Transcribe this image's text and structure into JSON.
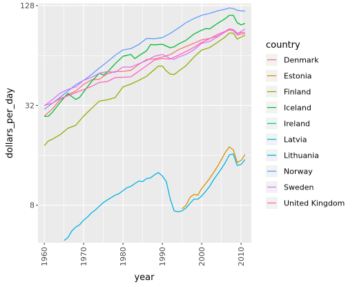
{
  "chart_data": {
    "type": "line",
    "title": "",
    "xlabel": "year",
    "ylabel": "dollars_per_day",
    "y_scale": "log2",
    "xlim": [
      1958.4,
      2012.6
    ],
    "ylim": [
      4.75,
      132
    ],
    "x_ticks": [
      {
        "value": 1960,
        "label": "1960"
      },
      {
        "value": 1970,
        "label": "1970"
      },
      {
        "value": 1980,
        "label": "1980"
      },
      {
        "value": 1990,
        "label": "1990"
      },
      {
        "value": 2000,
        "label": "2000"
      },
      {
        "value": 2010,
        "label": "2010"
      }
    ],
    "y_ticks": [
      {
        "value": 8,
        "label": "8"
      },
      {
        "value": 32,
        "label": "32"
      },
      {
        "value": 128,
        "label": "128"
      }
    ],
    "grid": true,
    "legend_position": "right",
    "legend_title": "country",
    "series": [
      {
        "name": "Denmark",
        "color": "#F8766D",
        "points": [
          [
            1960,
            27.6
          ],
          [
            1962,
            30.4
          ],
          [
            1964,
            34.6
          ],
          [
            1966,
            37.1
          ],
          [
            1968,
            39.1
          ],
          [
            1970,
            42.9
          ],
          [
            1972,
            45.7
          ],
          [
            1974,
            46.1
          ],
          [
            1976,
            49.6
          ],
          [
            1978,
            51.3
          ],
          [
            1980,
            51.3
          ],
          [
            1982,
            52.2
          ],
          [
            1984,
            56.6
          ],
          [
            1986,
            60.6
          ],
          [
            1988,
            61.1
          ],
          [
            1990,
            62.7
          ],
          [
            1992,
            64.8
          ],
          [
            1994,
            69.3
          ],
          [
            1996,
            72.6
          ],
          [
            1998,
            75.9
          ],
          [
            2000,
            79.6
          ],
          [
            2002,
            81.2
          ],
          [
            2004,
            83.8
          ],
          [
            2006,
            89.1
          ],
          [
            2007,
            91.4
          ],
          [
            2008,
            90.7
          ],
          [
            2009,
            85.2
          ],
          [
            2010,
            86.3
          ],
          [
            2011,
            86.6
          ]
        ]
      },
      {
        "name": "Estonia",
        "color": "#D39200",
        "points": [
          [
            1995,
            7.6
          ],
          [
            1996,
            8.0
          ],
          [
            1997,
            8.9
          ],
          [
            1998,
            9.3
          ],
          [
            1999,
            9.2
          ],
          [
            2000,
            10.1
          ],
          [
            2001,
            10.8
          ],
          [
            2002,
            11.6
          ],
          [
            2003,
            12.6
          ],
          [
            2004,
            13.7
          ],
          [
            2005,
            15.1
          ],
          [
            2006,
            16.7
          ],
          [
            2007,
            18.0
          ],
          [
            2008,
            17.3
          ],
          [
            2009,
            14.5
          ],
          [
            2010,
            14.9
          ],
          [
            2011,
            16.2
          ]
        ]
      },
      {
        "name": "Finland",
        "color": "#93AA00",
        "points": [
          [
            1960,
            18.3
          ],
          [
            1961,
            19.5
          ],
          [
            1962,
            20.0
          ],
          [
            1964,
            21.3
          ],
          [
            1966,
            23.3
          ],
          [
            1968,
            24.3
          ],
          [
            1970,
            27.6
          ],
          [
            1972,
            30.7
          ],
          [
            1974,
            34.0
          ],
          [
            1976,
            34.6
          ],
          [
            1978,
            35.7
          ],
          [
            1980,
            41.4
          ],
          [
            1982,
            43.1
          ],
          [
            1984,
            45.3
          ],
          [
            1986,
            48.0
          ],
          [
            1988,
            52.8
          ],
          [
            1989,
            55.3
          ],
          [
            1990,
            55.3
          ],
          [
            1991,
            51.7
          ],
          [
            1992,
            49.5
          ],
          [
            1993,
            49.2
          ],
          [
            1994,
            51.3
          ],
          [
            1996,
            55.6
          ],
          [
            1998,
            62.6
          ],
          [
            2000,
            69.1
          ],
          [
            2002,
            71.5
          ],
          [
            2004,
            76.9
          ],
          [
            2006,
            83.0
          ],
          [
            2007,
            87.4
          ],
          [
            2008,
            87.4
          ],
          [
            2009,
            80.5
          ],
          [
            2010,
            82.7
          ],
          [
            2011,
            84.8
          ]
        ]
      },
      {
        "name": "Iceland",
        "color": "#00BA38",
        "points": [
          [
            1960,
            27.5
          ],
          [
            1961,
            27.5
          ],
          [
            1962,
            29.0
          ],
          [
            1964,
            33.3
          ],
          [
            1966,
            37.9
          ],
          [
            1967,
            36.2
          ],
          [
            1968,
            34.8
          ],
          [
            1969,
            35.8
          ],
          [
            1970,
            38.6
          ],
          [
            1972,
            44.6
          ],
          [
            1974,
            50.1
          ],
          [
            1975,
            48.8
          ],
          [
            1976,
            50.7
          ],
          [
            1978,
            57.1
          ],
          [
            1980,
            63.4
          ],
          [
            1982,
            65.0
          ],
          [
            1983,
            61.4
          ],
          [
            1984,
            63.8
          ],
          [
            1986,
            68.4
          ],
          [
            1987,
            74.6
          ],
          [
            1988,
            74.3
          ],
          [
            1990,
            74.9
          ],
          [
            1992,
            71.3
          ],
          [
            1993,
            72.3
          ],
          [
            1994,
            74.9
          ],
          [
            1996,
            79.1
          ],
          [
            1998,
            86.2
          ],
          [
            2000,
            91.1
          ],
          [
            2001,
            93.1
          ],
          [
            2002,
            92.7
          ],
          [
            2004,
            100.0
          ],
          [
            2006,
            107.0
          ],
          [
            2007,
            112.0
          ],
          [
            2008,
            112.0
          ],
          [
            2009,
            101.0
          ],
          [
            2010,
            98.0
          ],
          [
            2011,
            100.0
          ]
        ]
      },
      {
        "name": "Ireland",
        "color": "#00C19F",
        "points": []
      },
      {
        "name": "Latvia",
        "color": "#00B9E3",
        "points": []
      },
      {
        "name": "Lithuania",
        "color": "#00B2E7",
        "points": [
          [
            1965,
            4.9
          ],
          [
            1966,
            5.1
          ],
          [
            1967,
            5.6
          ],
          [
            1968,
            5.9
          ],
          [
            1969,
            6.1
          ],
          [
            1970,
            6.5
          ],
          [
            1971,
            6.8
          ],
          [
            1972,
            7.2
          ],
          [
            1973,
            7.5
          ],
          [
            1974,
            7.9
          ],
          [
            1975,
            8.3
          ],
          [
            1976,
            8.6
          ],
          [
            1977,
            8.9
          ],
          [
            1978,
            9.2
          ],
          [
            1979,
            9.4
          ],
          [
            1980,
            9.8
          ],
          [
            1981,
            10.2
          ],
          [
            1982,
            10.4
          ],
          [
            1983,
            10.8
          ],
          [
            1984,
            11.2
          ],
          [
            1985,
            11.1
          ],
          [
            1986,
            11.6
          ],
          [
            1987,
            11.7
          ],
          [
            1988,
            12.2
          ],
          [
            1989,
            12.6
          ],
          [
            1990,
            12.0
          ],
          [
            1991,
            11.1
          ],
          [
            1992,
            8.7
          ],
          [
            1993,
            7.4
          ],
          [
            1994,
            7.3
          ],
          [
            1995,
            7.4
          ],
          [
            1996,
            7.7
          ],
          [
            1997,
            8.2
          ],
          [
            1998,
            8.7
          ],
          [
            1999,
            8.7
          ],
          [
            2000,
            9.1
          ],
          [
            2001,
            9.7
          ],
          [
            2002,
            10.4
          ],
          [
            2003,
            11.4
          ],
          [
            2004,
            12.3
          ],
          [
            2005,
            13.3
          ],
          [
            2006,
            14.5
          ],
          [
            2007,
            16.1
          ],
          [
            2008,
            16.3
          ],
          [
            2009,
            13.9
          ],
          [
            2010,
            14.1
          ],
          [
            2011,
            15.1
          ]
        ]
      },
      {
        "name": "Norway",
        "color": "#619CFF",
        "points": [
          [
            1960,
            30.3
          ],
          [
            1962,
            32.9
          ],
          [
            1964,
            35.8
          ],
          [
            1966,
            39.1
          ],
          [
            1968,
            42.7
          ],
          [
            1970,
            45.3
          ],
          [
            1972,
            49.2
          ],
          [
            1974,
            53.9
          ],
          [
            1976,
            58.6
          ],
          [
            1978,
            64.2
          ],
          [
            1980,
            69.2
          ],
          [
            1982,
            70.5
          ],
          [
            1984,
            74.6
          ],
          [
            1986,
            81.2
          ],
          [
            1988,
            80.9
          ],
          [
            1990,
            82.1
          ],
          [
            1992,
            87.1
          ],
          [
            1994,
            93.6
          ],
          [
            1996,
            101.0
          ],
          [
            1998,
            107.0
          ],
          [
            2000,
            112.0
          ],
          [
            2002,
            115.0
          ],
          [
            2004,
            119.0
          ],
          [
            2006,
            122.0
          ],
          [
            2007,
            124.0
          ],
          [
            2008,
            123.0
          ],
          [
            2009,
            120.0
          ],
          [
            2010,
            119.0
          ],
          [
            2011,
            119.0
          ]
        ]
      },
      {
        "name": "Sweden",
        "color": "#DB72FB",
        "points": [
          [
            1960,
            31.8
          ],
          [
            1962,
            34.6
          ],
          [
            1964,
            37.9
          ],
          [
            1966,
            40.0
          ],
          [
            1968,
            41.4
          ],
          [
            1970,
            45.3
          ],
          [
            1972,
            47.3
          ],
          [
            1974,
            50.1
          ],
          [
            1976,
            51.2
          ],
          [
            1978,
            50.7
          ],
          [
            1980,
            54.6
          ],
          [
            1982,
            54.5
          ],
          [
            1984,
            57.1
          ],
          [
            1986,
            59.7
          ],
          [
            1988,
            63.4
          ],
          [
            1990,
            65.0
          ],
          [
            1992,
            61.4
          ],
          [
            1993,
            60.7
          ],
          [
            1994,
            62.6
          ],
          [
            1996,
            65.0
          ],
          [
            1998,
            69.3
          ],
          [
            2000,
            75.9
          ],
          [
            2002,
            77.9
          ],
          [
            2004,
            83.0
          ],
          [
            2006,
            89.1
          ],
          [
            2007,
            92.3
          ],
          [
            2008,
            91.0
          ],
          [
            2009,
            85.2
          ],
          [
            2010,
            89.7
          ],
          [
            2011,
            92.3
          ]
        ]
      },
      {
        "name": "United Kingdom",
        "color": "#FF61C3",
        "points": [
          [
            1960,
            32.0
          ],
          [
            1962,
            33.0
          ],
          [
            1964,
            35.2
          ],
          [
            1966,
            36.6
          ],
          [
            1968,
            38.2
          ],
          [
            1970,
            39.9
          ],
          [
            1972,
            41.7
          ],
          [
            1974,
            44.1
          ],
          [
            1976,
            44.6
          ],
          [
            1978,
            47.1
          ],
          [
            1980,
            47.4
          ],
          [
            1982,
            47.6
          ],
          [
            1984,
            51.5
          ],
          [
            1986,
            55.6
          ],
          [
            1988,
            60.2
          ],
          [
            1990,
            61.4
          ],
          [
            1992,
            61.0
          ],
          [
            1994,
            64.2
          ],
          [
            1996,
            67.7
          ],
          [
            1998,
            71.7
          ],
          [
            2000,
            76.9
          ],
          [
            2002,
            80.9
          ],
          [
            2004,
            85.8
          ],
          [
            2006,
            89.7
          ],
          [
            2007,
            92.7
          ],
          [
            2008,
            91.7
          ],
          [
            2009,
            87.4
          ],
          [
            2010,
            88.0
          ],
          [
            2011,
            88.3
          ]
        ]
      }
    ]
  }
}
